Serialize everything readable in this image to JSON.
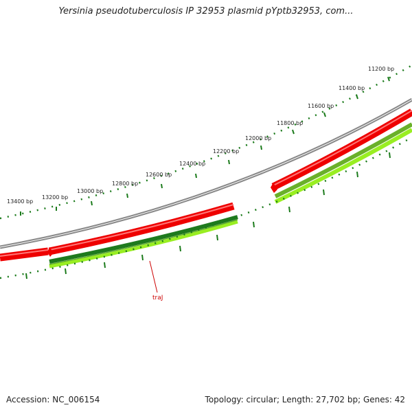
{
  "title": "Yersinia pseudotuberculosis IP 32953 plasmid pYptb32953, com...",
  "footer": {
    "accession": "Accession: NC_006154",
    "summary": "Topology: circular; Length: 27,702 bp; Genes: 42"
  },
  "ruler": {
    "labels": [
      "11200 bp",
      "11400 bp",
      "11600 bp",
      "11800 bp",
      "12000 bp",
      "12200 bp",
      "12400 bp",
      "12600 bp",
      "12800 bp",
      "13000 bp",
      "13200 bp",
      "13400 bp"
    ]
  },
  "gene_label": "traJ",
  "colors": {
    "backbone": "#888888",
    "cds_outer": "#ee0000",
    "cds_light": "#ff7777",
    "gene_dark_green": "#1e7a1e",
    "gene_light_green": "#99ee22",
    "ruler": "#1a7a1a",
    "label": "#cc0000"
  }
}
